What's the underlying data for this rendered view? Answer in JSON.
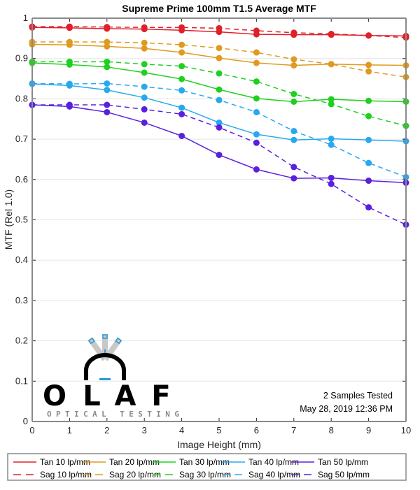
{
  "chart_data": {
    "type": "line",
    "title": "Supreme Prime 100mm T1.5 Average MTF",
    "xlabel": "Image Height (mm)",
    "ylabel": "MTF (Rel 1.0)",
    "xlim": [
      0,
      10
    ],
    "ylim": [
      0,
      1
    ],
    "x_ticks": [
      "0",
      "1",
      "2",
      "3",
      "4",
      "5",
      "6",
      "7",
      "8",
      "9",
      "10"
    ],
    "y_ticks": [
      "0",
      "0.1",
      "0.2",
      "0.3",
      "0.4",
      "0.5",
      "0.6",
      "0.7",
      "0.8",
      "0.9",
      "1"
    ],
    "grid": true,
    "legend_position": "bottom",
    "x": [
      0,
      1,
      2,
      3,
      4,
      5,
      6,
      7,
      8,
      9,
      10
    ],
    "series": [
      {
        "name": "Tan 10 lp/mm",
        "color": "#e0202a",
        "style": "solid",
        "values": [
          0.977,
          0.976,
          0.974,
          0.973,
          0.97,
          0.966,
          0.96,
          0.959,
          0.959,
          0.957,
          0.956
        ]
      },
      {
        "name": "Tan 20 lp/mm",
        "color": "#e09a20",
        "style": "solid",
        "values": [
          0.935,
          0.934,
          0.93,
          0.925,
          0.915,
          0.901,
          0.889,
          0.883,
          0.886,
          0.884,
          0.883
        ]
      },
      {
        "name": "Tan 30 lp/mm",
        "color": "#20d020",
        "style": "solid",
        "values": [
          0.889,
          0.885,
          0.879,
          0.865,
          0.849,
          0.823,
          0.801,
          0.793,
          0.799,
          0.795,
          0.793
        ]
      },
      {
        "name": "Tan 40 lp/mm",
        "color": "#28a8f0",
        "style": "solid",
        "values": [
          0.837,
          0.833,
          0.822,
          0.803,
          0.778,
          0.741,
          0.712,
          0.698,
          0.701,
          0.698,
          0.695
        ]
      },
      {
        "name": "Tan 50 lp/mm",
        "color": "#5a20e0",
        "style": "solid",
        "values": [
          0.785,
          0.781,
          0.767,
          0.741,
          0.708,
          0.661,
          0.625,
          0.603,
          0.604,
          0.597,
          0.592
        ]
      },
      {
        "name": "Sag 10 lp/mm",
        "color": "#e0202a",
        "style": "dashed",
        "values": [
          0.979,
          0.979,
          0.978,
          0.977,
          0.977,
          0.975,
          0.969,
          0.964,
          0.961,
          0.957,
          0.952
        ]
      },
      {
        "name": "Sag 20 lp/mm",
        "color": "#e09a20",
        "style": "dashed",
        "values": [
          0.941,
          0.941,
          0.941,
          0.939,
          0.934,
          0.926,
          0.915,
          0.898,
          0.886,
          0.868,
          0.854
        ]
      },
      {
        "name": "Sag 30 lp/mm",
        "color": "#20d020",
        "style": "dashed",
        "values": [
          0.892,
          0.892,
          0.892,
          0.886,
          0.881,
          0.863,
          0.843,
          0.812,
          0.787,
          0.757,
          0.733
        ]
      },
      {
        "name": "Sag 40 lp/mm",
        "color": "#28a8f0",
        "style": "dashed",
        "values": [
          0.838,
          0.837,
          0.838,
          0.83,
          0.821,
          0.797,
          0.767,
          0.72,
          0.686,
          0.641,
          0.606
        ]
      },
      {
        "name": "Sag 50 lp/mm",
        "color": "#5a20e0",
        "style": "dashed",
        "values": [
          0.785,
          0.785,
          0.785,
          0.774,
          0.762,
          0.729,
          0.691,
          0.631,
          0.589,
          0.531,
          0.488
        ]
      }
    ],
    "annotations": [
      "2 Samples Tested",
      "May 28, 2019 12:36 PM"
    ]
  },
  "logo": {
    "letters": [
      "O",
      "L",
      "A",
      "F"
    ],
    "tagline": "OPTICAL TESTING",
    "accent_color": "#2a9ad6"
  }
}
